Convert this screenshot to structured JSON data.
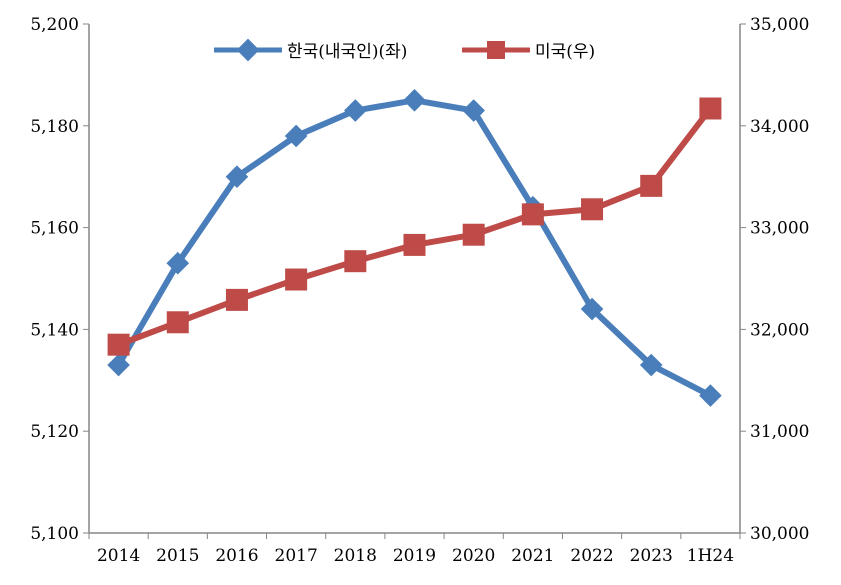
{
  "chart_data": {
    "type": "line",
    "title": "",
    "categories": [
      "2014",
      "2015",
      "2016",
      "2017",
      "2018",
      "2019",
      "2020",
      "2021",
      "2022",
      "2023",
      "1H24"
    ],
    "y_left": {
      "min": 5100,
      "max": 5200,
      "step": 20,
      "ticks": [
        "5,100",
        "5,120",
        "5,140",
        "5,160",
        "5,180",
        "5,200"
      ]
    },
    "y_right": {
      "min": 30000,
      "max": 35000,
      "step": 1000,
      "ticks": [
        "30,000",
        "31,000",
        "32,000",
        "33,000",
        "34,000",
        "35,000"
      ]
    },
    "grid": false,
    "legend_position": "top",
    "series": [
      {
        "name": "한국(내국인)(좌)",
        "axis": "left",
        "color": "#4a7ebb",
        "marker": "diamond",
        "values": [
          5133,
          5153,
          5170,
          5178,
          5183,
          5185,
          5183,
          5164,
          5144,
          5133,
          5127
        ]
      },
      {
        "name": "미국(우)",
        "axis": "right",
        "color": "#be4b48",
        "marker": "square",
        "values": [
          31850,
          32070,
          32290,
          32490,
          32670,
          32830,
          32930,
          33130,
          33180,
          33410,
          34170
        ]
      }
    ]
  }
}
